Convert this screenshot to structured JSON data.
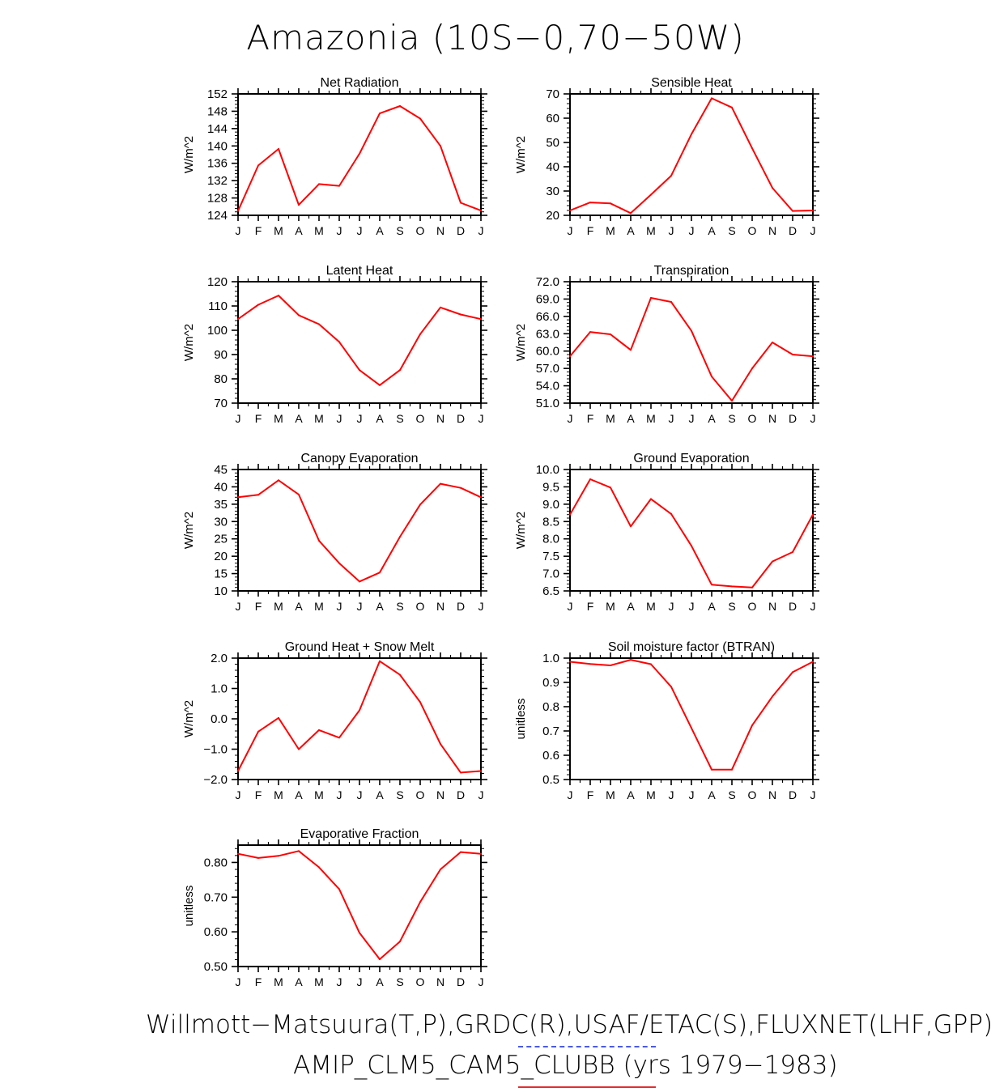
{
  "title": "Amazonia (10S−0,70−50W)",
  "footer": {
    "obs_line": "Willmott−Matsuura(T,P),GRDC(R),USAF/ETAC(S),FLUXNET(LHF,GPP)",
    "model_line": "AMIP_CLM5_CAM5_CLUBB (yrs 1979−1983)",
    "model_line_color": "#e03030",
    "obs_line_color": "#4a5ae8"
  },
  "line_color": "#ff0000",
  "chart_data": [
    {
      "type": "line",
      "title": "Net Radiation",
      "ylabel": "W/m^2",
      "ylim": [
        124,
        152
      ],
      "yticks": [
        124,
        128,
        132,
        136,
        140,
        144,
        148,
        152
      ],
      "yticklabels": [
        "124",
        "128",
        "132",
        "136",
        "140",
        "144",
        "148",
        "152"
      ],
      "categories": [
        "J",
        "F",
        "M",
        "A",
        "M",
        "J",
        "J",
        "A",
        "S",
        "O",
        "N",
        "D",
        "J"
      ],
      "values": [
        125.0,
        135.5,
        139.3,
        126.4,
        131.2,
        130.8,
        138.2,
        147.5,
        149.2,
        146.3,
        140.0,
        126.9,
        125.1
      ]
    },
    {
      "type": "line",
      "title": "Sensible Heat",
      "ylabel": "W/m^2",
      "ylim": [
        20,
        70
      ],
      "yticks": [
        20,
        30,
        40,
        50,
        60,
        70
      ],
      "yticklabels": [
        "20",
        "30",
        "40",
        "50",
        "60",
        "70"
      ],
      "categories": [
        "J",
        "F",
        "M",
        "A",
        "M",
        "J",
        "J",
        "A",
        "S",
        "O",
        "N",
        "D",
        "J"
      ],
      "values": [
        22.0,
        25.3,
        24.9,
        20.9,
        28.5,
        36.3,
        53.4,
        68.2,
        64.4,
        47.6,
        31.3,
        21.8,
        22.0
      ]
    },
    {
      "type": "line",
      "title": "Latent Heat",
      "ylabel": "W/m^2",
      "ylim": [
        70,
        120
      ],
      "yticks": [
        70,
        80,
        90,
        100,
        110,
        120
      ],
      "yticklabels": [
        "70",
        "80",
        "90",
        "100",
        "110",
        "120"
      ],
      "categories": [
        "J",
        "F",
        "M",
        "A",
        "M",
        "J",
        "J",
        "A",
        "S",
        "O",
        "N",
        "D",
        "J"
      ],
      "values": [
        104.6,
        110.5,
        114.3,
        106.2,
        102.5,
        95.2,
        83.6,
        77.4,
        83.6,
        98.4,
        109.4,
        106.5,
        104.6
      ]
    },
    {
      "type": "line",
      "title": "Transpiration",
      "ylabel": "W/m^2",
      "ylim": [
        51,
        72
      ],
      "yticks": [
        51,
        54,
        57,
        60,
        63,
        66,
        69,
        72
      ],
      "yticklabels": [
        "51.0",
        "54.0",
        "57.0",
        "60.0",
        "63.0",
        "66.0",
        "69.0",
        "72.0"
      ],
      "categories": [
        "J",
        "F",
        "M",
        "A",
        "M",
        "J",
        "J",
        "A",
        "S",
        "O",
        "N",
        "D",
        "J"
      ],
      "values": [
        59.1,
        63.3,
        62.9,
        60.2,
        69.2,
        68.5,
        63.5,
        55.6,
        51.4,
        57.0,
        61.5,
        59.4,
        59.1
      ]
    },
    {
      "type": "line",
      "title": "Canopy Evaporation",
      "ylabel": "W/m^2",
      "ylim": [
        10,
        45
      ],
      "yticks": [
        10,
        15,
        20,
        25,
        30,
        35,
        40,
        45
      ],
      "yticklabels": [
        "10",
        "15",
        "20",
        "25",
        "30",
        "35",
        "40",
        "45"
      ],
      "categories": [
        "J",
        "F",
        "M",
        "A",
        "M",
        "J",
        "J",
        "A",
        "S",
        "O",
        "N",
        "D",
        "J"
      ],
      "values": [
        37.0,
        37.7,
        41.9,
        37.8,
        24.5,
        18.0,
        12.7,
        15.3,
        25.6,
        34.9,
        40.9,
        39.7,
        37.0
      ]
    },
    {
      "type": "line",
      "title": "Ground Evaporation",
      "ylabel": "W/m^2",
      "ylim": [
        6.5,
        10.0
      ],
      "yticks": [
        6.5,
        7.0,
        7.5,
        8.0,
        8.5,
        9.0,
        9.5,
        10.0
      ],
      "yticklabels": [
        "6.5",
        "7.0",
        "7.5",
        "8.0",
        "8.5",
        "9.0",
        "9.5",
        "10.0"
      ],
      "categories": [
        "J",
        "F",
        "M",
        "A",
        "M",
        "J",
        "J",
        "A",
        "S",
        "O",
        "N",
        "D",
        "J"
      ],
      "values": [
        8.7,
        9.72,
        9.48,
        8.36,
        9.15,
        8.72,
        7.8,
        6.68,
        6.63,
        6.6,
        7.35,
        7.62,
        8.7
      ]
    },
    {
      "type": "line",
      "title": "Ground Heat + Snow Melt",
      "ylabel": "W/m^2",
      "ylim": [
        -2.0,
        2.0
      ],
      "yticks": [
        -2,
        -1,
        0,
        1,
        2
      ],
      "yticklabels": [
        "−2.0",
        "−1.0",
        "0.0",
        "1.0",
        "2.0"
      ],
      "categories": [
        "J",
        "F",
        "M",
        "A",
        "M",
        "J",
        "J",
        "A",
        "S",
        "O",
        "N",
        "D",
        "J"
      ],
      "values": [
        -1.72,
        -0.42,
        0.03,
        -1.0,
        -0.37,
        -0.62,
        0.28,
        1.9,
        1.45,
        0.55,
        -0.83,
        -1.77,
        -1.72
      ]
    },
    {
      "type": "line",
      "title": "Soil moisture factor (BTRAN)",
      "ylabel": "unitless",
      "ylim": [
        0.5,
        1.0
      ],
      "yticks": [
        0.5,
        0.6,
        0.7,
        0.8,
        0.9,
        1.0
      ],
      "yticklabels": [
        "0.5",
        "0.6",
        "0.7",
        "0.8",
        "0.9",
        "1.0"
      ],
      "categories": [
        "J",
        "F",
        "M",
        "A",
        "M",
        "J",
        "J",
        "A",
        "S",
        "O",
        "N",
        "D",
        "J"
      ],
      "values": [
        0.985,
        0.976,
        0.97,
        0.993,
        0.975,
        0.882,
        0.712,
        0.541,
        0.541,
        0.723,
        0.842,
        0.942,
        0.985
      ]
    },
    {
      "type": "line",
      "title": "Evaporative Fraction",
      "ylabel": "unitless",
      "ylim": [
        0.5,
        0.85
      ],
      "yticks": [
        0.5,
        0.6,
        0.7,
        0.8
      ],
      "yticklabels": [
        "0.50",
        "0.60",
        "0.70",
        "0.80"
      ],
      "categories": [
        "J",
        "F",
        "M",
        "A",
        "M",
        "J",
        "J",
        "A",
        "S",
        "O",
        "N",
        "D",
        "J"
      ],
      "values": [
        0.825,
        0.813,
        0.819,
        0.833,
        0.786,
        0.723,
        0.597,
        0.521,
        0.572,
        0.686,
        0.78,
        0.83,
        0.825
      ]
    }
  ]
}
